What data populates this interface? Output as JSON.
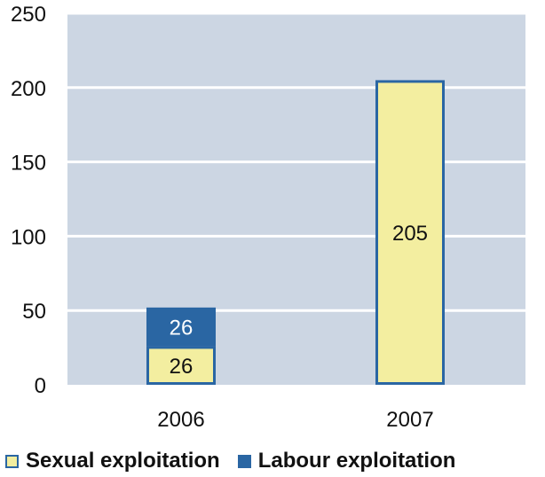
{
  "chart_data": {
    "type": "bar",
    "stacked": true,
    "categories": [
      "2006",
      "2007"
    ],
    "series": [
      {
        "name": "Sexual exploitation",
        "values": [
          26,
          205
        ],
        "labels": [
          "26",
          "205"
        ],
        "color": "#f3eea0",
        "stroke": "#2a66a3"
      },
      {
        "name": "Labour exploitation",
        "values": [
          26,
          0
        ],
        "labels": [
          "26",
          ""
        ],
        "color": "#2a66a3",
        "stroke": "#2a66a3"
      }
    ],
    "yticks": [
      "0",
      "50",
      "100",
      "150",
      "200",
      "250"
    ],
    "ylim": [
      0,
      250
    ],
    "grid": true,
    "legend_position": "bottom",
    "plot_background": "#ccd6e3",
    "grid_color": "#ffffff"
  }
}
